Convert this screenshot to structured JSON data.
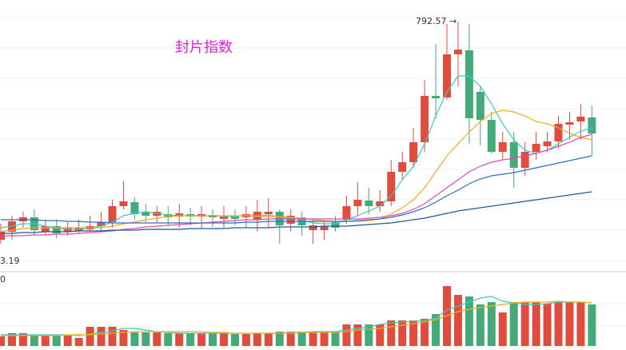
{
  "chart_data": [
    {
      "type": "candlestick",
      "title": "封片指数",
      "annotations": [
        "792.57 →",
        "3.19"
      ],
      "ylim": [
        480,
        820
      ],
      "up_color": "#de4d3d",
      "down_color": "#45a978",
      "open": [
        520,
        530,
        543,
        548,
        530,
        537,
        530,
        531,
        533,
        537,
        542,
        562,
        567,
        555,
        550,
        552,
        549,
        552,
        549,
        551,
        546,
        550,
        548,
        545,
        552,
        555,
        540,
        548,
        532,
        532,
        542,
        545,
        562,
        569,
        562,
        568,
        605,
        617,
        642,
        700,
        698,
        752,
        757,
        705,
        670,
        630,
        642,
        610,
        630,
        637,
        643,
        664,
        668,
        673
      ],
      "high": [
        540,
        550,
        555,
        558,
        545,
        545,
        542,
        545,
        550,
        555,
        570,
        593,
        573,
        565,
        562,
        562,
        565,
        560,
        562,
        558,
        562,
        558,
        562,
        570,
        572,
        558,
        558,
        555,
        545,
        543,
        550,
        575,
        592,
        585,
        582,
        620,
        630,
        660,
        720,
        765,
        790,
        792.57,
        790,
        712,
        680,
        655,
        655,
        642,
        655,
        655,
        675,
        680,
        690,
        688
      ],
      "low": [
        515,
        520,
        535,
        525,
        525,
        522,
        525,
        528,
        530,
        530,
        535,
        558,
        545,
        542,
        542,
        538,
        535,
        538,
        535,
        536,
        535,
        538,
        535,
        530,
        535,
        515,
        530,
        525,
        515,
        520,
        530,
        540,
        550,
        552,
        555,
        562,
        595,
        610,
        630,
        672,
        695,
        712,
        640,
        638,
        628,
        620,
        585,
        600,
        620,
        630,
        635,
        645,
        645,
        625
      ],
      "close": [
        530,
        543,
        548,
        532,
        537,
        528,
        535,
        535,
        537,
        542,
        562,
        568,
        552,
        550,
        555,
        548,
        553,
        549,
        552,
        548,
        550,
        546,
        552,
        555,
        555,
        538,
        550,
        538,
        538,
        537,
        535,
        562,
        570,
        562,
        568,
        605,
        617,
        642,
        700,
        697,
        752,
        758,
        672,
        670,
        630,
        642,
        610,
        630,
        640,
        643,
        665,
        667,
        674,
        653
      ],
      "lines": [
        {
          "color": "#3ec9c0",
          "values": [
            535,
            537,
            540,
            540,
            537,
            535,
            533,
            533,
            535,
            537,
            542,
            550,
            553,
            555,
            553,
            551,
            550,
            550,
            550,
            550,
            549,
            549,
            550,
            550,
            551,
            548,
            547,
            545,
            541,
            540,
            540,
            545,
            550,
            556,
            562,
            575,
            595,
            612,
            640,
            675,
            705,
            725,
            725,
            712,
            690,
            665,
            645,
            632,
            628,
            632,
            640,
            648,
            656,
            660
          ]
        },
        {
          "color": "#f0ad1c",
          "values": [
            530,
            532,
            534,
            535,
            535,
            535,
            535,
            535,
            535,
            535,
            537,
            540,
            542,
            545,
            547,
            549,
            550,
            550,
            550,
            550,
            550,
            550,
            550,
            549,
            549,
            549,
            548,
            547,
            545,
            544,
            543,
            543,
            543,
            544,
            546,
            552,
            560,
            570,
            585,
            605,
            625,
            640,
            655,
            668,
            678,
            682,
            680,
            675,
            668,
            665,
            660,
            653,
            648,
            645
          ]
        },
        {
          "color": "#e04ab4",
          "values": [
            525,
            525,
            525,
            526,
            526,
            527,
            527,
            528,
            529,
            530,
            531,
            533,
            534,
            536,
            537,
            538,
            539,
            540,
            541,
            542,
            543,
            544,
            545,
            545,
            546,
            546,
            546,
            546,
            546,
            546,
            546,
            546,
            546,
            547,
            548,
            550,
            553,
            558,
            565,
            575,
            585,
            595,
            605,
            612,
            617,
            620,
            622,
            625,
            628,
            632,
            637,
            642,
            648,
            652
          ]
        },
        {
          "color": "#2f6cc8",
          "values": [
            545,
            545,
            545,
            545,
            544,
            544,
            543,
            543,
            542,
            542,
            541,
            541,
            541,
            541,
            541,
            541,
            541,
            541,
            541,
            541,
            541,
            541,
            542,
            542,
            543,
            543,
            543,
            543,
            543,
            543,
            543,
            543,
            544,
            545,
            546,
            548,
            551,
            555,
            560,
            567,
            575,
            582,
            590,
            596,
            600,
            602,
            604,
            607,
            610,
            613,
            616,
            619,
            622,
            625
          ]
        },
        {
          "color": "#1d5a9c",
          "values": [
            528,
            528,
            529,
            529,
            530,
            530,
            530,
            531,
            531,
            531,
            532,
            532,
            532,
            533,
            533,
            533,
            533,
            534,
            534,
            534,
            534,
            535,
            535,
            535,
            535,
            536,
            536,
            536,
            536,
            537,
            537,
            537,
            538,
            539,
            540,
            541,
            543,
            545,
            547,
            550,
            553,
            556,
            558,
            560,
            562,
            564,
            566,
            568,
            570,
            572,
            574,
            576,
            578,
            580
          ]
        }
      ]
    },
    {
      "type": "volume",
      "annotations": [
        "0"
      ],
      "ylim": [
        0,
        90
      ],
      "values": [
        12,
        16,
        16,
        13,
        13,
        13,
        13,
        10,
        24,
        24,
        24,
        20,
        17,
        17,
        17,
        16,
        16,
        16,
        16,
        16,
        16,
        15,
        15,
        16,
        16,
        18,
        18,
        18,
        18,
        18,
        18,
        27,
        27,
        27,
        27,
        32,
        32,
        32,
        34,
        40,
        75,
        64,
        62,
        52,
        55,
        42,
        55,
        55,
        55,
        53,
        56,
        55,
        55,
        52
      ],
      "lines": [
        {
          "color": "#3ec9c0",
          "values": [
            14,
            14,
            14,
            14,
            14,
            14,
            14,
            13,
            15,
            17,
            19,
            22,
            22,
            20,
            18,
            17,
            16,
            16,
            16,
            16,
            16,
            16,
            16,
            16,
            16,
            16,
            17,
            17,
            18,
            18,
            18,
            20,
            22,
            24,
            27,
            29,
            30,
            31,
            32,
            35,
            45,
            50,
            55,
            60,
            62,
            56,
            54,
            52,
            52,
            53,
            55,
            55,
            55,
            54
          ]
        },
        {
          "color": "#f0ad1c",
          "values": [
            13,
            13,
            13,
            13,
            13,
            13,
            14,
            14,
            14,
            15,
            16,
            17,
            18,
            18,
            18,
            18,
            18,
            18,
            18,
            17,
            17,
            16,
            16,
            16,
            16,
            16,
            16,
            17,
            17,
            17,
            17,
            18,
            20,
            21,
            22,
            24,
            26,
            28,
            30,
            33,
            38,
            43,
            46,
            48,
            50,
            52,
            54,
            55,
            55,
            55,
            56,
            55,
            55,
            54
          ]
        }
      ]
    }
  ]
}
